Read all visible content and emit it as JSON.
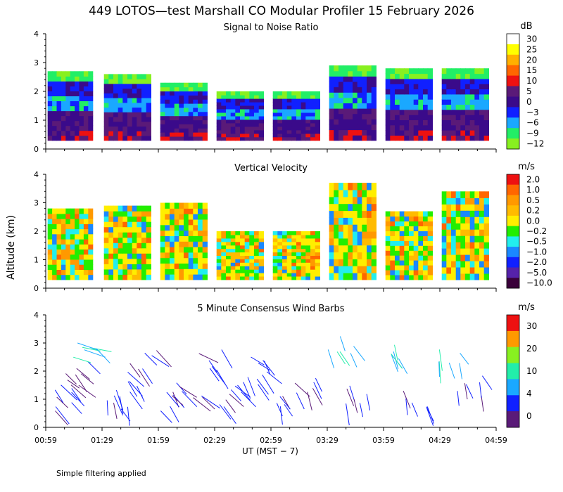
{
  "page": {
    "title": "449 LOTOS—test Marshall CO Modular Profiler 15 February 2026",
    "y_axis_label": "Altitude (km)",
    "x_axis_label": "UT  (MST − 7)",
    "footnote": "Simple filtering applied"
  },
  "x_ticks": [
    "00:59",
    "01:29",
    "01:59",
    "02:29",
    "02:59",
    "03:29",
    "03:59",
    "04:29",
    "04:59"
  ],
  "y_ticks": [
    "0",
    "1",
    "2",
    "3",
    "4"
  ],
  "panels": [
    {
      "title": "Signal to Noise Ratio",
      "unit": "dB",
      "colorbar_labels": [
        "30",
        "25",
        "20",
        "15",
        "10",
        "5",
        "0",
        "−3",
        "−6",
        "−9",
        "−12"
      ]
    },
    {
      "title": "Vertical Velocity",
      "unit": "m/s",
      "colorbar_labels": [
        "2.0",
        "1.0",
        "0.5",
        "0.2",
        "0.0",
        "−0.2",
        "−0.5",
        "−1.0",
        "−2.0",
        "−5.0",
        "−10.0"
      ]
    },
    {
      "title": "5 Minute Consensus Wind Barbs",
      "unit": "m/s",
      "colorbar_labels": [
        "30",
        "20",
        "10",
        "4",
        "0"
      ]
    }
  ],
  "colors": {
    "snr_scale": [
      "#ffffff",
      "#ffff00",
      "#ffb000",
      "#ff6600",
      "#ee1111",
      "#5a1a78",
      "#3a0a8a",
      "#1020ff",
      "#1aa8ff",
      "#22ee66",
      "#88f020"
    ],
    "vv_scale": [
      "#ee1111",
      "#ff6600",
      "#ff9900",
      "#ffbb00",
      "#ffee00",
      "#22ee00",
      "#22eeee",
      "#1a88ff",
      "#1020ff",
      "#5522aa",
      "#3a003a"
    ],
    "wind_scale": [
      "#ee1111",
      "#ff9900",
      "#88f020",
      "#22eeaa",
      "#1aa8ff",
      "#1020ff",
      "#5a1a78"
    ]
  },
  "chart_data": [
    {
      "type": "heatmap",
      "title": "Signal to Noise Ratio",
      "unit": "dB",
      "xlabel": "UT  (MST − 7)",
      "ylabel": "Altitude (km)",
      "x_range": [
        "00:59",
        "04:59"
      ],
      "ylim": [
        0,
        4
      ],
      "colorbar": [
        30,
        25,
        20,
        15,
        10,
        5,
        0,
        -3,
        -6,
        -9,
        -12
      ],
      "segments": [
        {
          "start": "01:00",
          "end": "01:24",
          "top_km": 2.7
        },
        {
          "start": "01:30",
          "end": "01:55",
          "top_km": 2.6
        },
        {
          "start": "02:00",
          "end": "02:25",
          "top_km": 2.3
        },
        {
          "start": "02:30",
          "end": "02:55",
          "top_km": 2.0
        },
        {
          "start": "03:00",
          "end": "03:25",
          "top_km": 2.0
        },
        {
          "start": "03:30",
          "end": "03:55",
          "top_km": 2.9
        },
        {
          "start": "04:00",
          "end": "04:25",
          "top_km": 2.8
        },
        {
          "start": "04:30",
          "end": "04:55",
          "top_km": 2.8
        }
      ]
    },
    {
      "type": "heatmap",
      "title": "Vertical Velocity",
      "unit": "m/s",
      "ylim": [
        0,
        4
      ],
      "colorbar": [
        2.0,
        1.0,
        0.5,
        0.2,
        0.0,
        -0.2,
        -0.5,
        -1.0,
        -2.0,
        -5.0,
        -10.0
      ],
      "segments": [
        {
          "start": "01:00",
          "end": "01:24",
          "top_km": 2.8
        },
        {
          "start": "01:30",
          "end": "01:55",
          "top_km": 2.9
        },
        {
          "start": "02:00",
          "end": "02:25",
          "top_km": 3.0
        },
        {
          "start": "02:30",
          "end": "02:55",
          "top_km": 2.0
        },
        {
          "start": "03:00",
          "end": "03:25",
          "top_km": 2.0
        },
        {
          "start": "03:30",
          "end": "03:55",
          "top_km": 3.7
        },
        {
          "start": "04:00",
          "end": "04:25",
          "top_km": 2.7
        },
        {
          "start": "04:30",
          "end": "04:55",
          "top_km": 3.4
        }
      ]
    },
    {
      "type": "scatter",
      "title": "5 Minute Consensus Wind Barbs",
      "unit": "m/s",
      "ylim": [
        0,
        4
      ],
      "colorbar": [
        30,
        20,
        10,
        4,
        0
      ],
      "barbs": [
        {
          "t": "01:00",
          "z": 0.8,
          "dir": 300,
          "spd": 4
        },
        {
          "t": "01:05",
          "z": 1.2,
          "dir": 310,
          "spd": 5
        },
        {
          "t": "01:10",
          "z": 2.0,
          "dir": 320,
          "spd": 6
        },
        {
          "t": "01:15",
          "z": 2.8,
          "dir": 330,
          "spd": 12
        },
        {
          "t": "01:30",
          "z": 1.0,
          "dir": 290,
          "spd": 4
        },
        {
          "t": "01:35",
          "z": 1.6,
          "dir": 300,
          "spd": 5
        },
        {
          "t": "01:45",
          "z": 2.4,
          "dir": 320,
          "spd": 6
        },
        {
          "t": "02:00",
          "z": 0.9,
          "dir": 300,
          "spd": 4
        },
        {
          "t": "02:10",
          "z": 1.4,
          "dir": 310,
          "spd": 5
        },
        {
          "t": "02:20",
          "z": 2.4,
          "dir": 315,
          "spd": 6
        },
        {
          "t": "02:30",
          "z": 1.0,
          "dir": 300,
          "spd": 4
        },
        {
          "t": "02:40",
          "z": 1.6,
          "dir": 305,
          "spd": 5
        },
        {
          "t": "02:50",
          "z": 2.2,
          "dir": 310,
          "spd": 6
        },
        {
          "t": "03:00",
          "z": 0.8,
          "dir": 290,
          "spd": 4
        },
        {
          "t": "03:10",
          "z": 1.5,
          "dir": 300,
          "spd": 5
        },
        {
          "t": "03:30",
          "z": 2.9,
          "dir": 300,
          "spd": 12
        },
        {
          "t": "03:40",
          "z": 1.2,
          "dir": 280,
          "spd": 5
        },
        {
          "t": "04:00",
          "z": 2.8,
          "dir": 290,
          "spd": 14
        },
        {
          "t": "04:10",
          "z": 1.0,
          "dir": 285,
          "spd": 5
        },
        {
          "t": "04:30",
          "z": 2.6,
          "dir": 290,
          "spd": 13
        },
        {
          "t": "04:40",
          "z": 1.5,
          "dir": 290,
          "spd": 5
        }
      ]
    }
  ]
}
